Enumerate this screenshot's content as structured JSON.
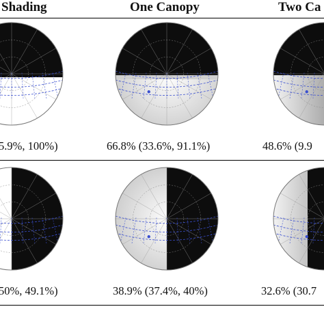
{
  "table": {
    "headers": [
      "Shading",
      "One Canopy",
      "Two Ca"
    ],
    "rows": [
      {
        "values": [
          "5.9%, 100%)",
          "66.8% (33.6%, 91.1%)",
          "48.6% (9.9"
        ]
      },
      {
        "values": [
          "50%, 49.1%)",
          "38.9% (37.4%, 40%)",
          "32.6% (30.7"
        ]
      }
    ]
  },
  "colors": {
    "sky_mask": "#0d0d0d",
    "sun_path": "#3a4fd0",
    "rule": "#000000"
  }
}
